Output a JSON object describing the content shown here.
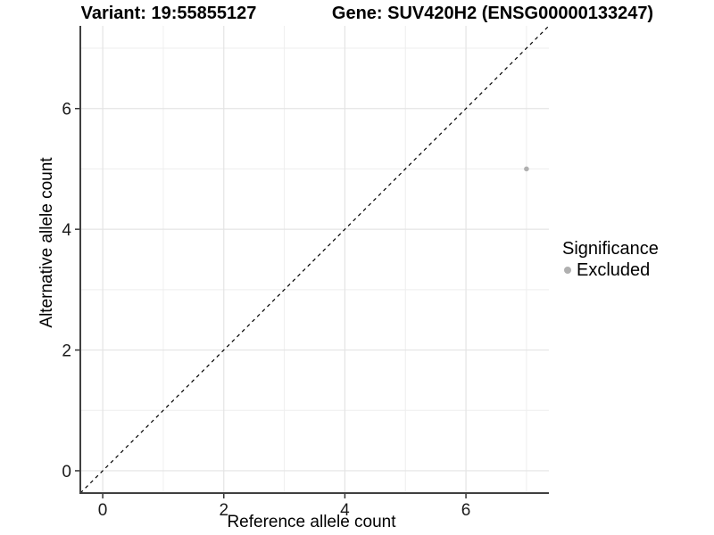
{
  "titles": {
    "variant": "Variant: 19:55855127",
    "gene": "Gene: SUV420H2 (ENSG00000133247)"
  },
  "chart_data": {
    "type": "scatter",
    "title_left": "Variant: 19:55855127",
    "title_right": "Gene: SUV420H2 (ENSG00000133247)",
    "xlabel": "Reference allele count",
    "ylabel": "Alternative allele count",
    "xlim": [
      -0.37,
      7.37
    ],
    "ylim": [
      -0.37,
      7.37
    ],
    "x_ticks": [
      0,
      2,
      4,
      6
    ],
    "y_ticks": [
      0,
      2,
      4,
      6
    ],
    "x_grid_minor": [
      1,
      3,
      5,
      7
    ],
    "y_grid_minor": [
      1,
      3,
      5,
      7
    ],
    "grid": true,
    "identity_line": {
      "style": "dashed",
      "slope": 1,
      "intercept": 0
    },
    "series": [
      {
        "name": "Excluded",
        "color": "#b0b0b0",
        "points": [
          {
            "x": 7,
            "y": 5
          }
        ]
      }
    ],
    "legend": {
      "position": "right",
      "title": "Significance",
      "items": [
        {
          "label": "Excluded",
          "color": "#b0b0b0",
          "marker": "circle"
        }
      ]
    },
    "colors": {
      "background": "#ffffff",
      "grid_major": "#e4e4e4",
      "grid_minor": "#eeeeee",
      "axis_line": "#404040",
      "tick_mark": "#333333",
      "tick_label": "#1a1a1a",
      "identity_line": "#000000"
    }
  }
}
